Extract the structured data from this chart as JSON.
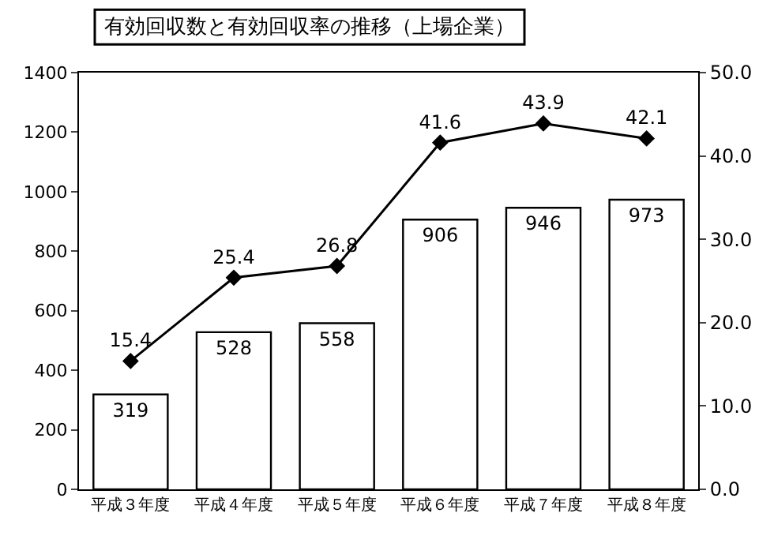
{
  "chart_data": {
    "type": "bar",
    "title": "有効回収数と有効回収率の推移（上場企業）",
    "categories": [
      "平成３年度",
      "平成４年度",
      "平成５年度",
      "平成６年度",
      "平成７年度",
      "平成８年度"
    ],
    "series": [
      {
        "color": "#ffffff",
        "values": [
          319,
          528,
          558,
          906,
          946,
          973
        ]
      },
      {
        "type": "line",
        "axis": "y2",
        "color": "#000000",
        "values": [
          15.4,
          25.4,
          26.8,
          41.6,
          43.9,
          42.1
        ]
      }
    ],
    "ylim": [
      0,
      1400
    ],
    "yticks": [
      0,
      200,
      400,
      600,
      800,
      1000,
      1200,
      1400
    ],
    "y2lim": [
      0,
      50
    ],
    "y2ticks": [
      {
        "value": 0,
        "label": "0.0"
      },
      {
        "value": 10,
        "label": "10.0"
      },
      {
        "value": 20,
        "label": "20.0"
      },
      {
        "value": 30,
        "label": "30.0"
      },
      {
        "value": 40,
        "label": "40.0"
      },
      {
        "value": 50,
        "label": "50.0"
      }
    ],
    "data_labels": true,
    "marker": "diamond",
    "line_style": "solid",
    "grid": false,
    "legend": false
  }
}
